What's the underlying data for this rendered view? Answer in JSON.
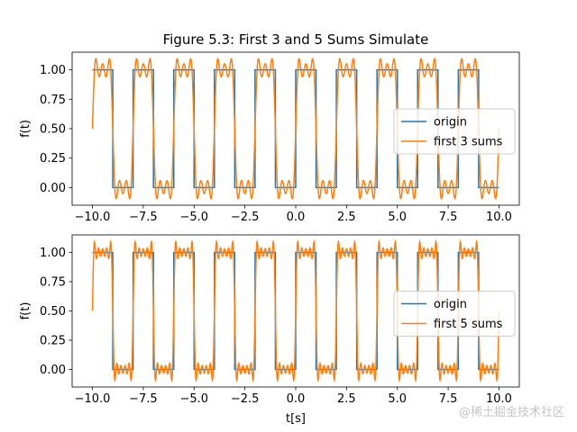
{
  "figure_title": "Figure 5.3: First 3 and 5 Sums Simulate",
  "watermark": "@稀土掘金技术社区",
  "colors": {
    "origin": "#1f77b4",
    "sum": "#ff7f0e",
    "axis": "#000000",
    "legend_border": "#cccccc"
  },
  "chart_data": [
    {
      "type": "line",
      "id": "top",
      "title": "Figure 5.3: First 3 and 5 Sums Simulate",
      "xlabel": "",
      "ylabel": "f(t)",
      "xlim": [
        -11,
        11
      ],
      "ylim": [
        -0.15,
        1.15
      ],
      "xticks": [
        -10.0,
        -7.5,
        -5.0,
        -2.5,
        0.0,
        2.5,
        5.0,
        7.5,
        10.0
      ],
      "xtick_labels": [
        "−10.0",
        "−7.5",
        "−5.0",
        "−2.5",
        "0.0",
        "2.5",
        "5.0",
        "7.5",
        "10.0"
      ],
      "yticks": [
        0.0,
        0.25,
        0.5,
        0.75,
        1.0
      ],
      "ytick_labels": [
        "0.00",
        "0.25",
        "0.50",
        "0.75",
        "1.00"
      ],
      "legend_position": "center-right",
      "series": [
        {
          "name": "origin",
          "kind": "square wave",
          "period": 2,
          "duty_high": 1,
          "t_range": [
            -10,
            10
          ],
          "low": 0,
          "high": 1
        },
        {
          "name": "first 3 sums",
          "kind": "fourier partial sum",
          "period": 2,
          "terms": 3,
          "t_range": [
            -10,
            10
          ]
        }
      ]
    },
    {
      "type": "line",
      "id": "bottom",
      "title": "",
      "xlabel": "t[s]",
      "ylabel": "f(t)",
      "xlim": [
        -11,
        11
      ],
      "ylim": [
        -0.15,
        1.15
      ],
      "xticks": [
        -10.0,
        -7.5,
        -5.0,
        -2.5,
        0.0,
        2.5,
        5.0,
        7.5,
        10.0
      ],
      "xtick_labels": [
        "−10.0",
        "−7.5",
        "−5.0",
        "−2.5",
        "0.0",
        "2.5",
        "5.0",
        "7.5",
        "10.0"
      ],
      "yticks": [
        0.0,
        0.25,
        0.5,
        0.75,
        1.0
      ],
      "ytick_labels": [
        "0.00",
        "0.25",
        "0.50",
        "0.75",
        "1.00"
      ],
      "legend_position": "center-right",
      "series": [
        {
          "name": "origin",
          "kind": "square wave",
          "period": 2,
          "duty_high": 1,
          "t_range": [
            -10,
            10
          ],
          "low": 0,
          "high": 1
        },
        {
          "name": "first 5 sums",
          "kind": "fourier partial sum",
          "period": 2,
          "terms": 5,
          "t_range": [
            -10,
            10
          ]
        }
      ]
    }
  ]
}
